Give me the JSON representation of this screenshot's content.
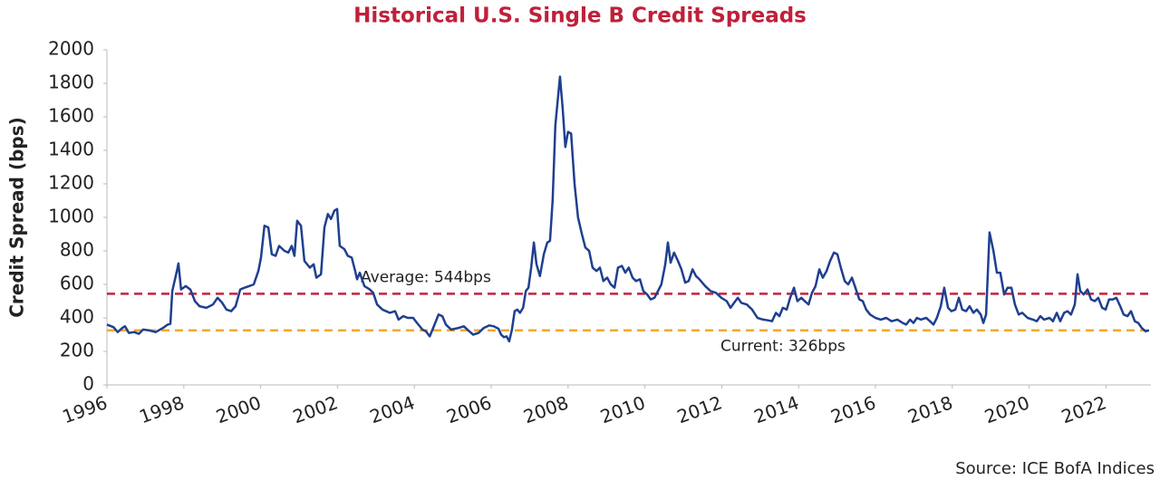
{
  "chart_data": {
    "type": "line",
    "title": "Historical U.S. Single B Credit Spreads",
    "y_label": "Credit Spread (bps)",
    "source": "Source: ICE BofA Indices",
    "color": "#1f3f8f",
    "x": [
      1996.0,
      1996.17,
      1996.28,
      1996.4,
      1996.47,
      1996.57,
      1996.71,
      1996.83,
      1996.94,
      1997.11,
      1997.27,
      1997.46,
      1997.58,
      1997.65,
      1997.7,
      1997.82,
      1997.86,
      1997.93,
      1998.05,
      1998.17,
      1998.29,
      1998.41,
      1998.59,
      1998.76,
      1998.88,
      1999.0,
      1999.11,
      1999.23,
      1999.35,
      1999.47,
      1999.58,
      1999.7,
      1999.82,
      1999.94,
      2000.01,
      2000.1,
      2000.2,
      2000.29,
      2000.39,
      2000.48,
      2000.62,
      2000.72,
      2000.81,
      2000.88,
      2000.95,
      2001.05,
      2001.14,
      2001.28,
      2001.38,
      2001.45,
      2001.57,
      2001.66,
      2001.75,
      2001.83,
      2001.92,
      2001.99,
      2002.06,
      2002.18,
      2002.27,
      2002.37,
      2002.46,
      2002.51,
      2002.58,
      2002.7,
      2002.84,
      2002.93,
      2003.03,
      2003.17,
      2003.36,
      2003.5,
      2003.59,
      2003.71,
      2003.83,
      2003.97,
      2004.07,
      2004.21,
      2004.3,
      2004.4,
      2004.49,
      2004.63,
      2004.73,
      2004.82,
      2004.96,
      2005.15,
      2005.29,
      2005.43,
      2005.53,
      2005.67,
      2005.81,
      2005.95,
      2006.07,
      2006.19,
      2006.26,
      2006.33,
      2006.4,
      2006.47,
      2006.54,
      2006.61,
      2006.68,
      2006.75,
      2006.83,
      2006.9,
      2006.97,
      2007.04,
      2007.11,
      2007.18,
      2007.27,
      2007.37,
      2007.46,
      2007.53,
      2007.6,
      2007.67,
      2007.79,
      2007.86,
      2007.93,
      2008.0,
      2008.08,
      2008.17,
      2008.26,
      2008.36,
      2008.45,
      2008.55,
      2008.64,
      2008.74,
      2008.83,
      2008.92,
      2009.02,
      2009.11,
      2009.21,
      2009.3,
      2009.4,
      2009.49,
      2009.58,
      2009.68,
      2009.77,
      2009.87,
      2009.96,
      2010.06,
      2010.15,
      2010.25,
      2010.34,
      2010.43,
      2010.53,
      2010.6,
      2010.67,
      2010.76,
      2010.86,
      2010.95,
      2011.05,
      2011.14,
      2011.24,
      2011.33,
      2011.42,
      2011.57,
      2011.71,
      2011.85,
      2011.99,
      2012.13,
      2012.23,
      2012.32,
      2012.42,
      2012.51,
      2012.65,
      2012.79,
      2012.93,
      2013.08,
      2013.22,
      2013.31,
      2013.41,
      2013.5,
      2013.59,
      2013.69,
      2013.78,
      2013.88,
      2013.97,
      2014.07,
      2014.16,
      2014.26,
      2014.35,
      2014.44,
      2014.54,
      2014.63,
      2014.73,
      2014.82,
      2014.92,
      2015.01,
      2015.1,
      2015.2,
      2015.29,
      2015.39,
      2015.48,
      2015.58,
      2015.67,
      2015.76,
      2015.86,
      2016.0,
      2016.14,
      2016.28,
      2016.42,
      2016.57,
      2016.71,
      2016.8,
      2016.9,
      2016.99,
      2017.08,
      2017.18,
      2017.32,
      2017.42,
      2017.51,
      2017.6,
      2017.7,
      2017.79,
      2017.89,
      2017.98,
      2018.08,
      2018.17,
      2018.26,
      2018.36,
      2018.45,
      2018.55,
      2018.64,
      2018.74,
      2018.81,
      2018.88,
      2018.97,
      2019.07,
      2019.16,
      2019.25,
      2019.35,
      2019.44,
      2019.54,
      2019.63,
      2019.73,
      2019.82,
      2019.96,
      2020.1,
      2020.2,
      2020.29,
      2020.39,
      2020.53,
      2020.62,
      2020.72,
      2020.81,
      2020.91,
      2021.0,
      2021.09,
      2021.19,
      2021.26,
      2021.33,
      2021.42,
      2021.52,
      2021.61,
      2021.71,
      2021.8,
      2021.9,
      2021.99,
      2022.08,
      2022.18,
      2022.27,
      2022.37,
      2022.46,
      2022.56,
      2022.65,
      2022.75,
      2022.84,
      2022.93,
      2023.03,
      2023.12
    ],
    "values": [
      360,
      345,
      315,
      340,
      350,
      310,
      315,
      305,
      330,
      325,
      315,
      340,
      360,
      365,
      560,
      680,
      725,
      570,
      590,
      570,
      500,
      470,
      460,
      480,
      520,
      490,
      450,
      440,
      470,
      570,
      580,
      590,
      600,
      680,
      760,
      950,
      940,
      780,
      770,
      830,
      800,
      790,
      830,
      770,
      980,
      950,
      740,
      700,
      720,
      640,
      660,
      940,
      1020,
      990,
      1040,
      1050,
      830,
      810,
      770,
      760,
      680,
      630,
      670,
      590,
      570,
      550,
      480,
      450,
      430,
      440,
      390,
      410,
      400,
      400,
      370,
      330,
      320,
      290,
      340,
      420,
      410,
      360,
      330,
      340,
      350,
      320,
      300,
      310,
      340,
      355,
      350,
      335,
      300,
      285,
      290,
      260,
      330,
      440,
      450,
      430,
      460,
      560,
      580,
      700,
      850,
      720,
      650,
      780,
      850,
      860,
      1100,
      1550,
      1840,
      1650,
      1420,
      1510,
      1500,
      1200,
      1000,
      900,
      820,
      800,
      700,
      680,
      700,
      620,
      640,
      600,
      580,
      700,
      710,
      670,
      700,
      640,
      620,
      630,
      560,
      540,
      510,
      520,
      560,
      600,
      720,
      850,
      730,
      790,
      740,
      690,
      610,
      620,
      690,
      650,
      630,
      590,
      560,
      550,
      520,
      500,
      460,
      490,
      520,
      490,
      480,
      450,
      400,
      390,
      385,
      380,
      430,
      410,
      460,
      450,
      520,
      580,
      500,
      520,
      500,
      480,
      550,
      590,
      690,
      640,
      680,
      740,
      790,
      780,
      700,
      620,
      600,
      640,
      580,
      510,
      500,
      450,
      420,
      400,
      390,
      400,
      380,
      390,
      370,
      360,
      390,
      370,
      400,
      390,
      400,
      380,
      360,
      400,
      470,
      580,
      460,
      440,
      450,
      520,
      450,
      440,
      470,
      430,
      450,
      420,
      370,
      420,
      910,
      800,
      670,
      670,
      540,
      580,
      580,
      480,
      420,
      430,
      400,
      390,
      380,
      410,
      390,
      400,
      380,
      430,
      380,
      430,
      440,
      420,
      480,
      660,
      560,
      540,
      570,
      510,
      500,
      520,
      460,
      450,
      510,
      510,
      520,
      470,
      420,
      410,
      440,
      380,
      370,
      340,
      320,
      326
    ],
    "xlim": [
      1996,
      2023.17
    ],
    "xticks": [
      1996,
      1998,
      2000,
      2002,
      2004,
      2006,
      2008,
      2010,
      2012,
      2014,
      2016,
      2018,
      2020,
      2022
    ],
    "ylim": [
      0,
      2000
    ],
    "yticks": [
      0,
      200,
      400,
      600,
      800,
      1000,
      1200,
      1400,
      1600,
      1800,
      2000
    ],
    "grid": false,
    "reference_lines": [
      {
        "label": "Average: 544bps",
        "value": 544,
        "color": "#c8203c"
      },
      {
        "label": "Current: 326bps",
        "value": 326,
        "color": "#f0a830"
      }
    ]
  }
}
